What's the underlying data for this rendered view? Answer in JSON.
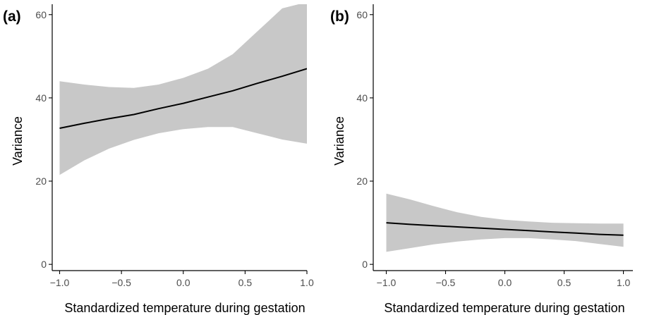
{
  "colors": {
    "band": "#c8c8c8",
    "line": "#000000",
    "axis": "#000000",
    "tick_text": "#4d4d4d"
  },
  "chart_data": [
    {
      "type": "line",
      "panel_label": "(a)",
      "xlabel": "Standardized temperature during gestation",
      "ylabel": "Variance",
      "xlim": [
        -1.06,
        1.0
      ],
      "ylim": [
        -1.5,
        62.5
      ],
      "x_ticks": [
        -1.0,
        -0.5,
        0.0,
        0.5,
        1.0
      ],
      "x_tick_labels": [
        "−1.0",
        "−0.5",
        "0.0",
        "0.5",
        "1.0"
      ],
      "y_ticks": [
        0,
        20,
        40,
        60
      ],
      "y_tick_labels": [
        "0",
        "20",
        "40",
        "60"
      ],
      "grid": false,
      "series": [
        {
          "x": [
            -1.0,
            -0.8,
            -0.6,
            -0.4,
            -0.2,
            0.0,
            0.2,
            0.4,
            0.6,
            0.8,
            1.0
          ],
          "y": [
            32.7,
            33.9,
            35.0,
            36.0,
            37.4,
            38.7,
            40.2,
            41.7,
            43.5,
            45.2,
            47.0
          ],
          "lower": [
            21.5,
            25.0,
            27.8,
            29.9,
            31.5,
            32.5,
            33.0,
            33.0,
            31.5,
            30.0,
            29.0
          ],
          "upper": [
            44.0,
            43.2,
            42.6,
            42.4,
            43.2,
            44.8,
            47.0,
            50.5,
            56.0,
            61.5,
            63.0
          ]
        }
      ]
    },
    {
      "type": "line",
      "panel_label": "(b)",
      "xlabel": "Standardized temperature during gestation",
      "ylabel": "Variance",
      "xlim": [
        -1.11,
        1.08
      ],
      "ylim": [
        -1.5,
        62.5
      ],
      "x_ticks": [
        -1.0,
        -0.5,
        0.0,
        0.5,
        1.0
      ],
      "x_tick_labels": [
        "−1.0",
        "−0.5",
        "0.0",
        "0.5",
        "1.0"
      ],
      "y_ticks": [
        0,
        20,
        40,
        60
      ],
      "y_tick_labels": [
        "0",
        "20",
        "40",
        "60"
      ],
      "grid": false,
      "series": [
        {
          "x": [
            -1.0,
            -0.8,
            -0.6,
            -0.4,
            -0.2,
            0.0,
            0.2,
            0.4,
            0.6,
            0.8,
            1.0
          ],
          "y": [
            10.0,
            9.6,
            9.3,
            9.0,
            8.7,
            8.4,
            8.1,
            7.8,
            7.5,
            7.2,
            7.0
          ],
          "lower": [
            3.0,
            3.9,
            4.8,
            5.5,
            6.0,
            6.3,
            6.3,
            6.0,
            5.6,
            4.9,
            4.2
          ],
          "upper": [
            17.0,
            15.6,
            14.0,
            12.5,
            11.4,
            10.7,
            10.3,
            10.0,
            9.9,
            9.8,
            9.8
          ]
        }
      ]
    }
  ]
}
